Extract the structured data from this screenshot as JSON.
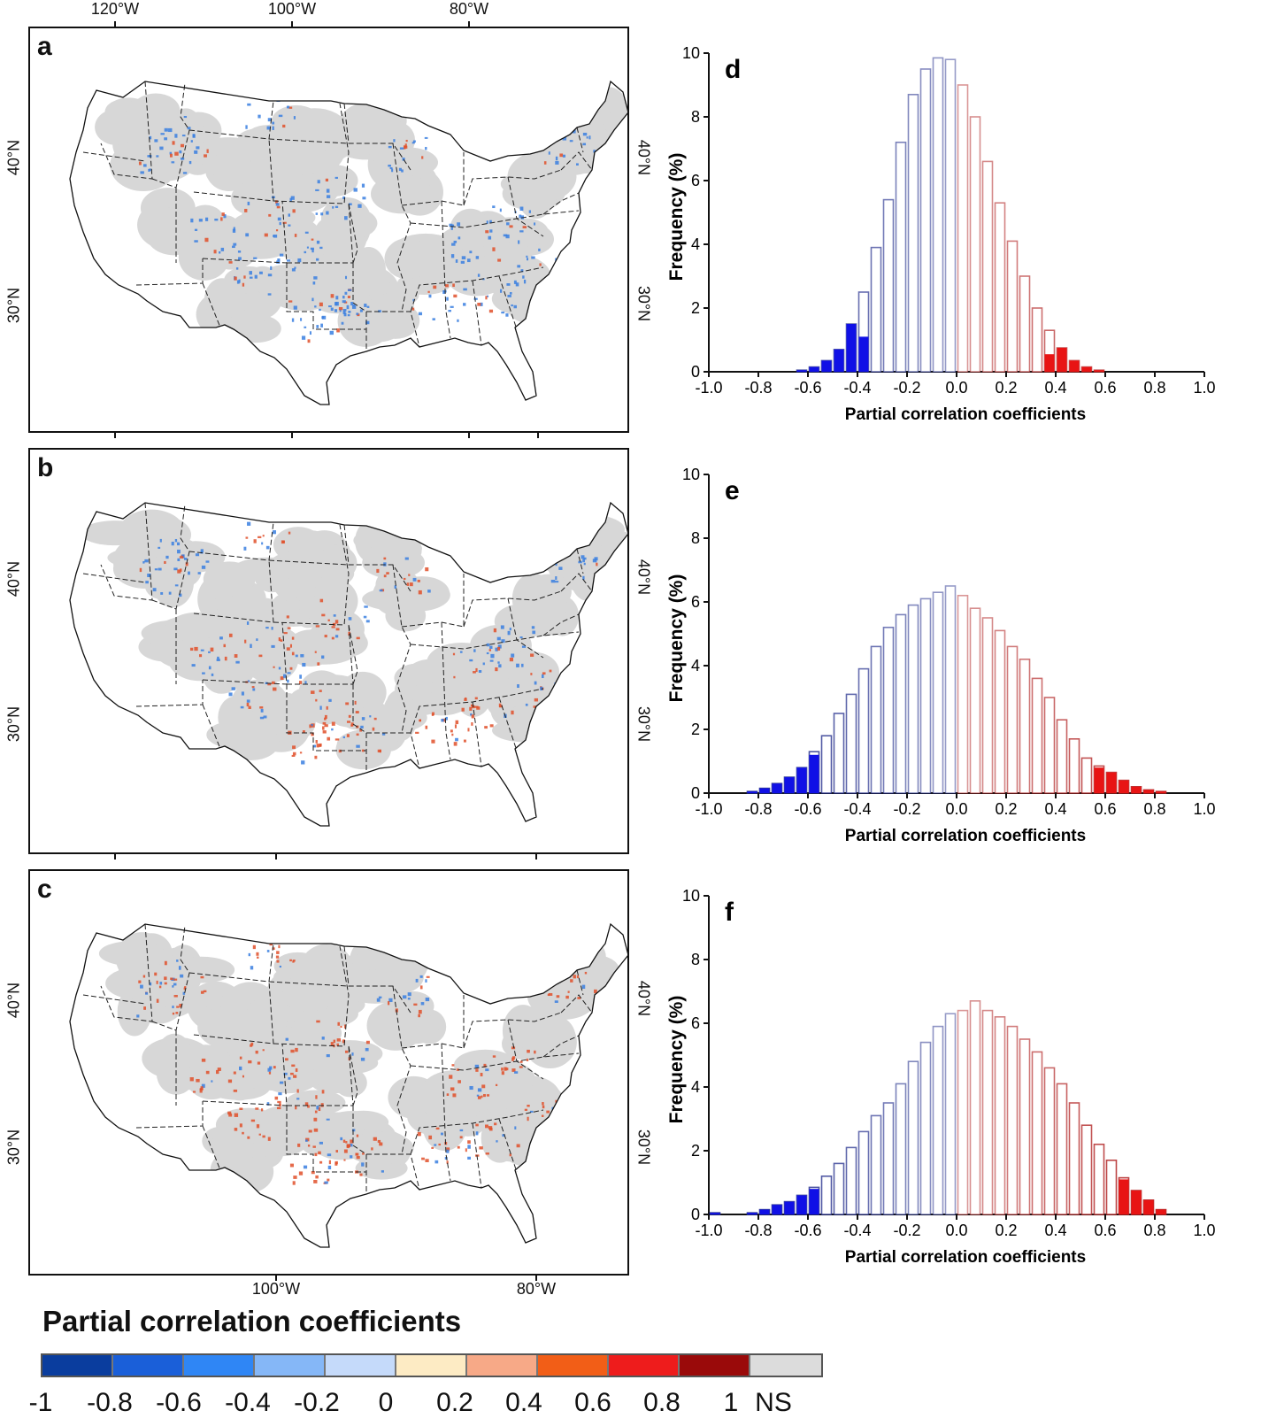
{
  "maps": {
    "top_lon_labels": [
      "120°W",
      "100°W",
      "80°W"
    ],
    "bottom_lon_labels": [
      "100°W",
      "80°W"
    ],
    "lat_labels": [
      "40°N",
      "30°N"
    ],
    "panels": [
      {
        "letter": "a",
        "dominant": "blue"
      },
      {
        "letter": "b",
        "dominant": "mixed"
      },
      {
        "letter": "c",
        "dominant": "red"
      }
    ]
  },
  "chart_data": [
    {
      "type": "bar",
      "panel": "d",
      "xlabel": "Partial correlation coefficients",
      "ylabel": "Frequency (%)",
      "xlim": [
        -1.0,
        1.0
      ],
      "ylim": [
        0,
        10
      ],
      "xticks": [
        "-1.0",
        "-0.8",
        "-0.6",
        "-0.4",
        "-0.2",
        "0.0",
        "0.2",
        "0.4",
        "0.6",
        "0.8",
        "1.0"
      ],
      "yticks": [
        "0",
        "2",
        "4",
        "6",
        "8",
        "10"
      ],
      "bin_width": 0.05,
      "significance_threshold": 0.375,
      "bin_centers": [
        -0.625,
        -0.575,
        -0.525,
        -0.475,
        -0.425,
        -0.375,
        -0.325,
        -0.275,
        -0.225,
        -0.175,
        -0.125,
        -0.075,
        -0.025,
        0.025,
        0.075,
        0.125,
        0.175,
        0.225,
        0.275,
        0.325,
        0.375,
        0.425,
        0.475,
        0.525,
        0.575
      ],
      "values": [
        0.05,
        0.15,
        0.35,
        0.7,
        1.5,
        2.5,
        3.9,
        5.4,
        7.2,
        8.7,
        9.5,
        9.85,
        9.8,
        9.0,
        8.0,
        6.6,
        5.3,
        4.1,
        3.0,
        2.0,
        1.3,
        0.75,
        0.35,
        0.15,
        0.05
      ],
      "significant_values": [
        0.05,
        0.15,
        0.35,
        0.7,
        1.5,
        1.1,
        0,
        0,
        0,
        0,
        0,
        0,
        0,
        0,
        0,
        0,
        0,
        0,
        0,
        0,
        0.55,
        0.75,
        0.35,
        0.15,
        0.05
      ]
    },
    {
      "type": "bar",
      "panel": "e",
      "xlabel": "Partial correlation coefficients",
      "ylabel": "Frequency (%)",
      "xlim": [
        -1.0,
        1.0
      ],
      "ylim": [
        0,
        10
      ],
      "xticks": [
        "-1.0",
        "-0.8",
        "-0.6",
        "-0.4",
        "-0.2",
        "0.0",
        "0.2",
        "0.4",
        "0.6",
        "0.8",
        "1.0"
      ],
      "yticks": [
        "0",
        "2",
        "4",
        "6",
        "8",
        "10"
      ],
      "bin_width": 0.05,
      "significance_threshold": 0.575,
      "bin_centers": [
        -0.825,
        -0.775,
        -0.725,
        -0.675,
        -0.625,
        -0.575,
        -0.525,
        -0.475,
        -0.425,
        -0.375,
        -0.325,
        -0.275,
        -0.225,
        -0.175,
        -0.125,
        -0.075,
        -0.025,
        0.025,
        0.075,
        0.125,
        0.175,
        0.225,
        0.275,
        0.325,
        0.375,
        0.425,
        0.475,
        0.525,
        0.575,
        0.625,
        0.675,
        0.725,
        0.775,
        0.825
      ],
      "values": [
        0.05,
        0.15,
        0.3,
        0.5,
        0.8,
        1.3,
        1.8,
        2.5,
        3.1,
        3.9,
        4.6,
        5.2,
        5.6,
        5.9,
        6.1,
        6.3,
        6.5,
        6.2,
        5.8,
        5.5,
        5.1,
        4.6,
        4.2,
        3.6,
        3.0,
        2.3,
        1.7,
        1.1,
        0.85,
        0.65,
        0.4,
        0.2,
        0.1,
        0.05
      ],
      "significant_values": [
        0.05,
        0.15,
        0.3,
        0.5,
        0.8,
        1.2,
        0,
        0,
        0,
        0,
        0,
        0,
        0,
        0,
        0,
        0,
        0,
        0,
        0,
        0,
        0,
        0,
        0,
        0,
        0,
        0,
        0,
        0,
        0.8,
        0.65,
        0.4,
        0.2,
        0.1,
        0.05
      ]
    },
    {
      "type": "bar",
      "panel": "f",
      "xlabel": "Partial correlation coefficients",
      "ylabel": "Frequency (%)",
      "xlim": [
        -1.0,
        1.0
      ],
      "ylim": [
        0,
        10
      ],
      "xticks": [
        "-1.0",
        "-0.8",
        "-0.6",
        "-0.4",
        "-0.2",
        "0.0",
        "0.2",
        "0.4",
        "0.6",
        "0.8",
        "1.0"
      ],
      "yticks": [
        "0",
        "2",
        "4",
        "6",
        "8",
        "10"
      ],
      "bin_width": 0.05,
      "significance_threshold": 0.575,
      "bin_centers": [
        -0.975,
        -0.825,
        -0.775,
        -0.725,
        -0.675,
        -0.625,
        -0.575,
        -0.525,
        -0.475,
        -0.425,
        -0.375,
        -0.325,
        -0.275,
        -0.225,
        -0.175,
        -0.125,
        -0.075,
        -0.025,
        0.025,
        0.075,
        0.125,
        0.175,
        0.225,
        0.275,
        0.325,
        0.375,
        0.425,
        0.475,
        0.525,
        0.575,
        0.625,
        0.675,
        0.725,
        0.775,
        0.825
      ],
      "values": [
        0.05,
        0.05,
        0.15,
        0.3,
        0.4,
        0.6,
        0.85,
        1.2,
        1.6,
        2.1,
        2.6,
        3.1,
        3.5,
        4.1,
        4.8,
        5.4,
        5.9,
        6.3,
        6.4,
        6.7,
        6.4,
        6.2,
        5.9,
        5.5,
        5.1,
        4.6,
        4.1,
        3.5,
        2.8,
        2.2,
        1.7,
        1.15,
        0.75,
        0.45,
        0.15
      ],
      "significant_values": [
        0.05,
        0.05,
        0.15,
        0.3,
        0.4,
        0.6,
        0.8,
        0,
        0,
        0,
        0,
        0,
        0,
        0,
        0,
        0,
        0,
        0,
        0,
        0,
        0,
        0,
        0,
        0,
        0,
        0,
        0,
        0,
        0,
        0,
        0,
        1.1,
        0.75,
        0.45,
        0.15
      ]
    }
  ],
  "legend": {
    "title": "Partial correlation coefficients",
    "colors": [
      "#0a3d9e",
      "#1a5fd9",
      "#2f86f5",
      "#85b7f7",
      "#c5dafa",
      "#fdebc4",
      "#f7a987",
      "#f25e17",
      "#ee1c1c",
      "#9a0a0a",
      "#dcdcdc"
    ],
    "tick_labels": [
      "-1",
      "-0.8",
      "-0.6",
      "-0.4",
      "-0.2",
      "0",
      "0.2",
      "0.4",
      "0.6",
      "0.8",
      "1",
      "NS"
    ]
  },
  "style": {
    "blue_fill": "#1010e6",
    "red_fill": "#e81414",
    "blue_outline": "#1f2a8a",
    "red_outline": "#b02020",
    "map_gray": "#d7d7d7",
    "map_blue": "#3a7fe0",
    "map_red": "#e0502a"
  }
}
